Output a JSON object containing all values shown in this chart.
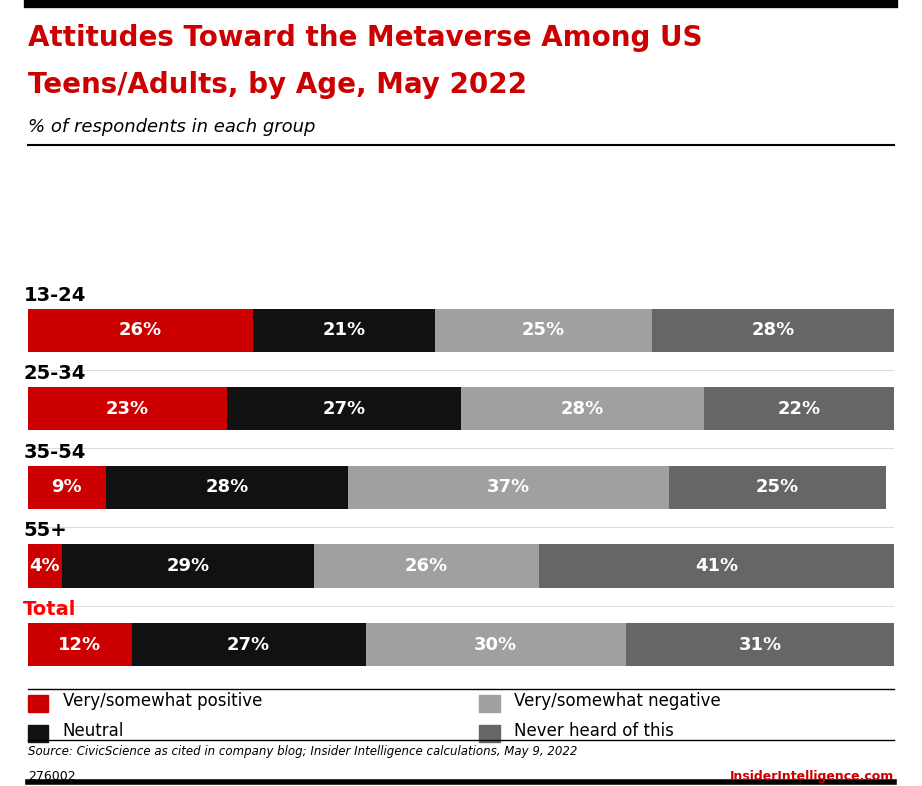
{
  "title_line1": "Attitudes Toward the Metaverse Among US",
  "title_line2": "Teens/Adults, by Age, May 2022",
  "subtitle": "% of respondents in each group",
  "categories": [
    "13-24",
    "25-34",
    "35-54",
    "55+",
    "Total"
  ],
  "category_colors": [
    "black",
    "black",
    "black",
    "black",
    "red"
  ],
  "data": {
    "13-24": [
      26,
      21,
      25,
      28
    ],
    "25-34": [
      23,
      27,
      28,
      22
    ],
    "35-54": [
      9,
      28,
      37,
      25
    ],
    "55+": [
      4,
      29,
      26,
      41
    ],
    "Total": [
      12,
      27,
      30,
      31
    ]
  },
  "colors": [
    "#cc0000",
    "#111111",
    "#a0a0a0",
    "#666666"
  ],
  "legend_labels": [
    "Very/somewhat positive",
    "Neutral",
    "Very/somewhat negative",
    "Never heard of this"
  ],
  "source": "Source: CivicScience as cited in company blog; Insider Intelligence calculations, May 9, 2022",
  "chart_id": "276002",
  "brand": "InsiderIntelligence.com",
  "background_color": "#ffffff",
  "title_color": "#cc0000",
  "bar_height": 0.55,
  "bar_label_fontsize": 13,
  "category_fontsize": 14,
  "legend_fontsize": 12,
  "top_bar_color": "#1a1a1a"
}
